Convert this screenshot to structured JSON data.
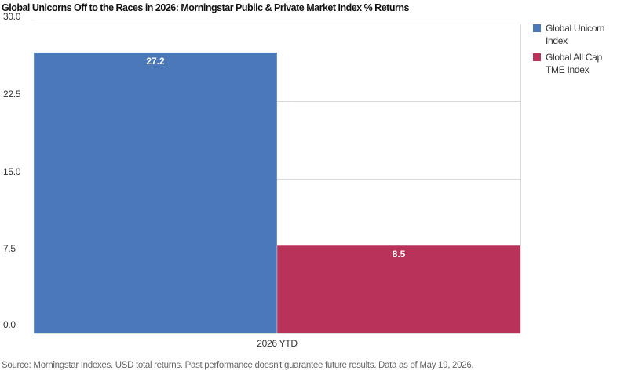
{
  "chart_data": {
    "type": "bar",
    "title": "Global Unicorns Off to the Races in 2026: Morningstar Public & Private Market Index % Returns",
    "categories": [
      "2026 YTD"
    ],
    "series": [
      {
        "name": "Global Unicorn Index",
        "values": [
          27.2
        ],
        "color": "#4a78b8"
      },
      {
        "name": "Global All Cap TME Index",
        "values": [
          8.5
        ],
        "color": "#b8325a"
      }
    ],
    "data_labels": [
      "27.2",
      "8.5"
    ],
    "ylim": [
      0,
      30
    ],
    "yticks": [
      "30.0",
      "22.5",
      "15.0",
      "7.5",
      "0.0"
    ],
    "ytick_values": [
      30,
      22.5,
      15,
      7.5,
      0
    ],
    "xlabel": "",
    "ylabel": "",
    "grid": true,
    "legend_position": "right",
    "source": "Source: Morningstar Indexes. USD total returns. Past performance doesn't guarantee future results.  Data as of May 19, 2026."
  }
}
